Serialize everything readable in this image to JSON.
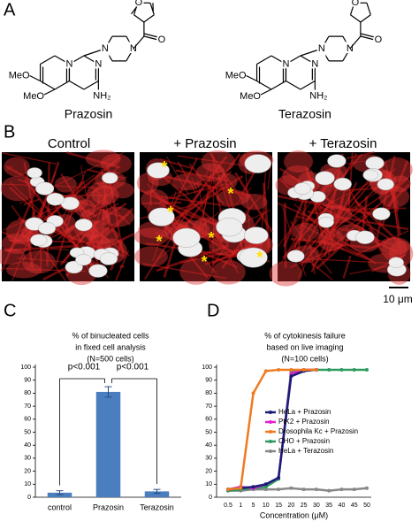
{
  "panel_a": {
    "label": "A",
    "compounds": [
      {
        "name": "Prazosin",
        "substituents": [
          "MeO",
          "MeO",
          "NH₂"
        ],
        "atoms": [
          "N",
          "N",
          "N",
          "N",
          "O",
          "O"
        ]
      },
      {
        "name": "Terazosin",
        "substituents": [
          "MeO",
          "MeO",
          "NH₂"
        ],
        "atoms": [
          "N",
          "N",
          "N",
          "N",
          "O",
          "O"
        ]
      }
    ]
  },
  "panel_b": {
    "label": "B",
    "conditions": [
      "Control",
      "+ Prazosin",
      "+ Terazosin"
    ],
    "scale_bar": "10 μm",
    "marker": "*"
  },
  "chart_data": [
    {
      "type": "bar",
      "panel_label": "C",
      "title": [
        "% of binucleated cells",
        "in fixed cell analysis",
        "(N=500 cells)"
      ],
      "categories": [
        "control",
        "Prazosin",
        "Terazosin"
      ],
      "values": [
        3.5,
        81,
        4.5
      ],
      "errors": [
        1.5,
        4,
        1.5
      ],
      "color": "#4a7ebf",
      "ylim": [
        0,
        100
      ],
      "yticks": [
        0,
        10,
        20,
        30,
        40,
        50,
        60,
        70,
        80,
        90,
        100
      ],
      "annotations": [
        "p<0.001",
        "p<0.001"
      ]
    },
    {
      "type": "line",
      "panel_label": "D",
      "title": [
        "% of cytokinesis failure",
        "based on live imaging",
        "(N=100 cells)"
      ],
      "x_label": "Concentration (μM)",
      "categories": [
        "0.5",
        "1",
        "5",
        "10",
        "15",
        "20",
        "25",
        "30",
        "35",
        "40",
        "45",
        "50"
      ],
      "series": [
        {
          "name": "HeLa + Prazosin",
          "color": "#1c1c78",
          "values": [
            6,
            7,
            8,
            10,
            15,
            93,
            97,
            98,
            null,
            null,
            null,
            null
          ]
        },
        {
          "name": "PtK2 + Prazosin",
          "color": "#e020d0",
          "values": [
            6,
            8,
            7,
            10,
            15,
            95,
            98,
            98,
            null,
            null,
            null,
            null
          ]
        },
        {
          "name": "Drosophila Kc + Prazosin",
          "color": "#f07a20",
          "values": [
            6,
            7,
            80,
            97,
            98,
            98,
            98,
            98,
            null,
            null,
            null,
            null
          ]
        },
        {
          "name": "CHO + Prazosin",
          "color": "#2e9a60",
          "values": [
            5,
            6,
            7,
            8,
            14,
            97,
            98,
            98,
            98,
            98,
            98,
            98
          ]
        },
        {
          "name": "HeLa + Terazosin",
          "color": "#888888",
          "values": [
            5,
            5,
            6,
            6,
            6,
            7,
            6,
            6,
            5,
            6,
            6,
            7
          ]
        }
      ],
      "ylim": [
        0,
        100
      ],
      "yticks": [
        0,
        10,
        20,
        30,
        40,
        50,
        60,
        70,
        80,
        90,
        100
      ]
    }
  ]
}
